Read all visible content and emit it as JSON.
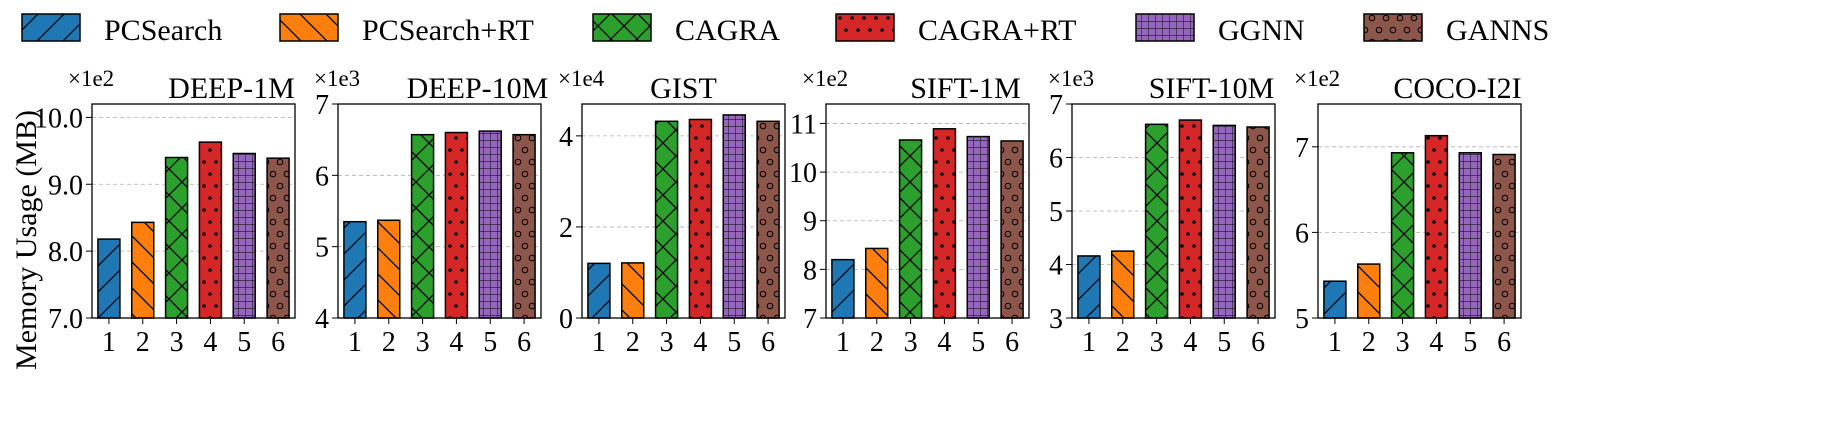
{
  "legend": [
    {
      "name": "PCSearch",
      "color": "#1f77b4",
      "pattern": "diag-fwd"
    },
    {
      "name": "PCSearch+RT",
      "color": "#ff7f0e",
      "pattern": "diag-back"
    },
    {
      "name": "CAGRA",
      "color": "#2ca02c",
      "pattern": "cross"
    },
    {
      "name": "CAGRA+RT",
      "color": "#d62728",
      "pattern": "dots"
    },
    {
      "name": "GGNN",
      "color": "#9467bd",
      "pattern": "grid"
    },
    {
      "name": "GANNS",
      "color": "#8c564b",
      "pattern": "circles"
    }
  ],
  "ylabel": "Memory Usage (MB)",
  "chart_data": [
    {
      "type": "bar",
      "title": "DEEP-1M",
      "multiplier": "×1e2",
      "categories": [
        "1",
        "2",
        "3",
        "4",
        "5",
        "6"
      ],
      "values": [
        8.18,
        8.43,
        9.4,
        9.63,
        9.46,
        9.39
      ],
      "ylim": [
        7.0,
        10.2
      ],
      "yticks": [
        7.0,
        8.0,
        9.0,
        10.0
      ],
      "yticklabels": [
        "7.0",
        "8.0",
        "9.0",
        "10.0"
      ],
      "grid": true
    },
    {
      "type": "bar",
      "title": "DEEP-10M",
      "multiplier": "×1e3",
      "categories": [
        "1",
        "2",
        "3",
        "4",
        "5",
        "6"
      ],
      "values": [
        5.35,
        5.37,
        6.57,
        6.6,
        6.62,
        6.57
      ],
      "ylim": [
        4,
        7
      ],
      "yticks": [
        4,
        5,
        6,
        7
      ],
      "yticklabels": [
        "4",
        "5",
        "6",
        "7"
      ],
      "grid": true
    },
    {
      "type": "bar",
      "title": "GIST",
      "multiplier": "×1e4",
      "categories": [
        "1",
        "2",
        "3",
        "4",
        "5",
        "6"
      ],
      "values": [
        1.2,
        1.21,
        4.32,
        4.36,
        4.46,
        4.32
      ],
      "ylim": [
        0,
        4.7
      ],
      "yticks": [
        0,
        2,
        4
      ],
      "yticklabels": [
        "0",
        "2",
        "4"
      ],
      "grid": true
    },
    {
      "type": "bar",
      "title": "SIFT-1M",
      "multiplier": "×1e2",
      "categories": [
        "1",
        "2",
        "3",
        "4",
        "5",
        "6"
      ],
      "values": [
        8.2,
        8.43,
        10.66,
        10.89,
        10.73,
        10.64
      ],
      "ylim": [
        7,
        11.4
      ],
      "yticks": [
        7,
        8,
        9,
        10,
        11
      ],
      "yticklabels": [
        "7",
        "8",
        "9",
        "10",
        "11"
      ],
      "grid": true
    },
    {
      "type": "bar",
      "title": "SIFT-10M",
      "multiplier": "×1e3",
      "categories": [
        "1",
        "2",
        "3",
        "4",
        "5",
        "6"
      ],
      "values": [
        4.16,
        4.25,
        6.62,
        6.7,
        6.6,
        6.57
      ],
      "ylim": [
        3,
        7
      ],
      "yticks": [
        3,
        4,
        5,
        6,
        7
      ],
      "yticklabels": [
        "3",
        "4",
        "5",
        "6",
        "7"
      ],
      "grid": true
    },
    {
      "type": "bar",
      "title": "COCO-I2I",
      "multiplier": "×1e2",
      "categories": [
        "1",
        "2",
        "3",
        "4",
        "5",
        "6"
      ],
      "values": [
        5.43,
        5.63,
        6.93,
        7.13,
        6.93,
        6.91
      ],
      "ylim": [
        5,
        7.5
      ],
      "yticks": [
        5,
        6,
        7
      ],
      "yticklabels": [
        "5",
        "6",
        "7"
      ],
      "grid": true
    }
  ]
}
